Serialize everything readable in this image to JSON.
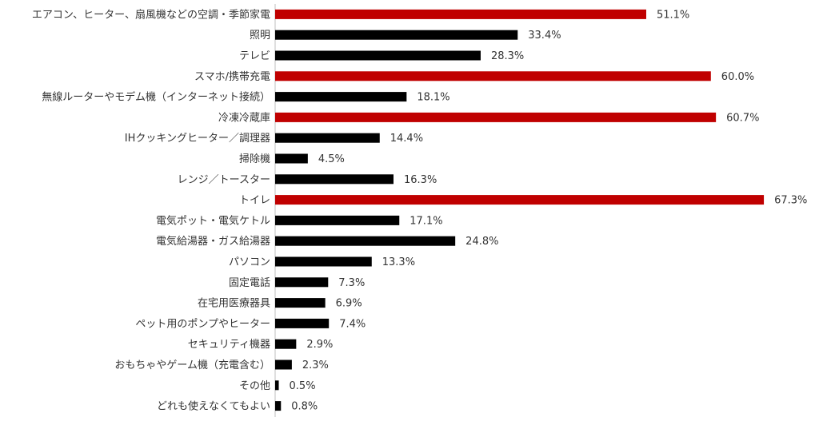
{
  "chart_data": {
    "type": "bar",
    "orientation": "horizontal",
    "categories": [
      "エアコン、ヒーター、扇風機などの空調・季節家電",
      "照明",
      "テレビ",
      "スマホ/携帯充電",
      "無線ルーターやモデム機（インターネット接続）",
      "冷凍冷蔵庫",
      "IHクッキングヒーター／調理器",
      "掃除機",
      "レンジ／トースター",
      "トイレ",
      "電気ポット・電気ケトル",
      "電気給湯器・ガス給湯器",
      "パソコン",
      "固定電話",
      "在宅用医療器具",
      "ペット用のポンプやヒーター",
      "セキュリティ機器",
      "おもちゃやゲーム機（充電含む）",
      "その他",
      "どれも使えなくてもよい"
    ],
    "values": [
      51.1,
      33.4,
      28.3,
      60.0,
      18.1,
      60.7,
      14.4,
      4.5,
      16.3,
      67.3,
      17.1,
      24.8,
      13.3,
      7.3,
      6.9,
      7.4,
      2.9,
      2.3,
      0.5,
      0.8
    ],
    "value_labels": [
      "51.1%",
      "33.4%",
      "28.3%",
      "60.0%",
      "18.1%",
      "60.7%",
      "14.4%",
      "4.5%",
      "16.3%",
      "67.3%",
      "17.1%",
      "24.8%",
      "13.3%",
      "7.3%",
      "6.9%",
      "7.4%",
      "2.9%",
      "2.3%",
      "0.5%",
      "0.8%"
    ],
    "colors": [
      "#c00000",
      "#000000",
      "#000000",
      "#c00000",
      "#000000",
      "#c00000",
      "#000000",
      "#000000",
      "#000000",
      "#c00000",
      "#000000",
      "#000000",
      "#000000",
      "#000000",
      "#000000",
      "#000000",
      "#000000",
      "#000000",
      "#000000",
      "#000000"
    ],
    "xlim": [
      0,
      75
    ]
  }
}
